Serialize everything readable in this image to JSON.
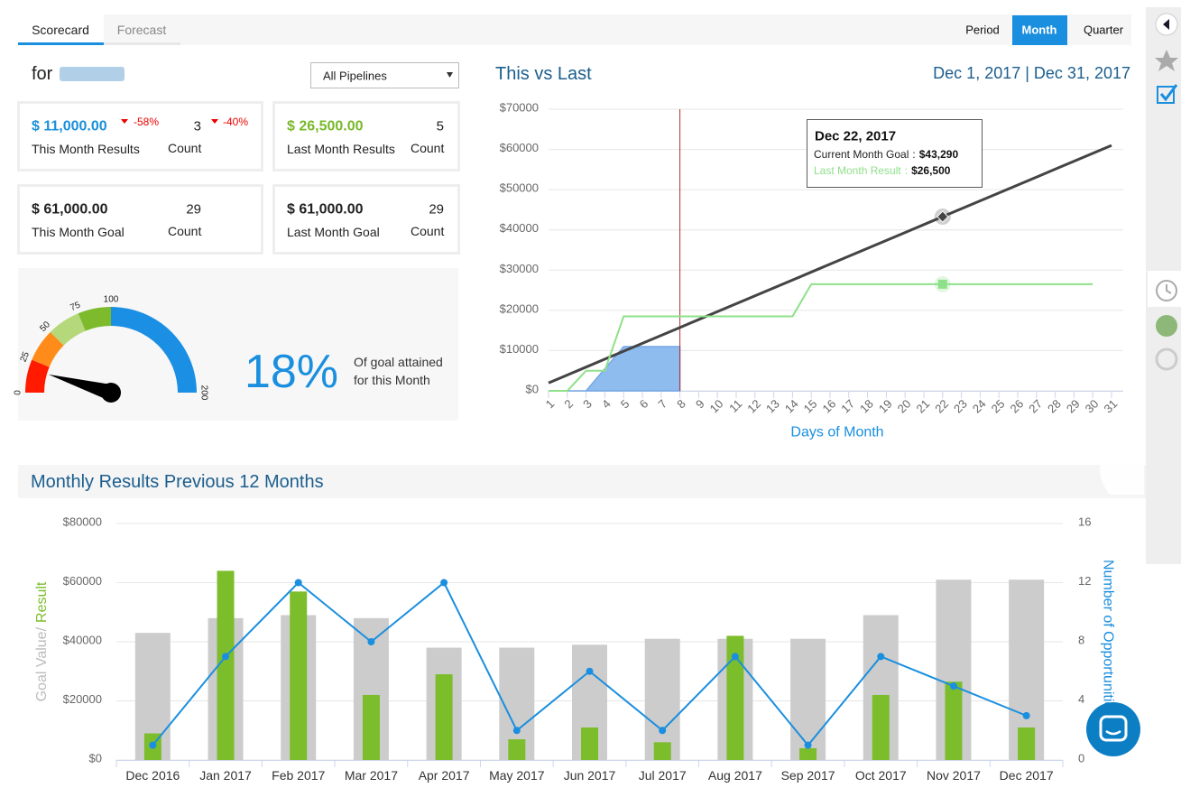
{
  "tabs": [
    "Scorecard",
    "Forecast"
  ],
  "period": {
    "label": "Period",
    "options": [
      "Month",
      "Quarter"
    ]
  },
  "owner_prefix": "for",
  "filter": "All Pipelines",
  "cards": [
    {
      "value": "$ 11,000.00",
      "color": "#1a90db",
      "change": "-58%",
      "count": "3",
      "count_change": "-40%",
      "label": "This Month Results",
      "count_label": "Count"
    },
    {
      "value": "$ 26,500.00",
      "color": "#78b82a",
      "count": "5",
      "label": "Last Month Results",
      "count_label": "Count"
    },
    {
      "value": "$ 61,000.00",
      "color": "#222222",
      "count": "29",
      "label": "This Month Goal",
      "count_label": "Count"
    },
    {
      "value": "$ 61,000.00",
      "color": "#222222",
      "count": "29",
      "label": "Last Month Goal",
      "count_label": "Count"
    }
  ],
  "gauge": {
    "ticks": [
      0,
      25,
      50,
      75,
      100,
      200
    ],
    "band_colors": [
      "#ff1a00",
      "#ff8c1a",
      "#b5d97a",
      "#7dbb2d",
      "#1a8fe3"
    ],
    "value": 18,
    "value_label": "18%",
    "caption": [
      "Of goal attained",
      "for this Month"
    ]
  },
  "chart_data": [
    {
      "type": "line",
      "title": "This vs Last",
      "date_range": "Dec 1, 2017 | Dec 31, 2017",
      "xlabel": "Days of Month",
      "x": [
        1,
        2,
        3,
        4,
        5,
        6,
        7,
        8,
        9,
        10,
        11,
        12,
        13,
        14,
        15,
        16,
        17,
        18,
        19,
        20,
        21,
        22,
        23,
        24,
        25,
        26,
        27,
        28,
        29,
        30,
        31
      ],
      "xlim": [
        1,
        31
      ],
      "xticks": [
        1,
        2,
        3,
        4,
        5,
        6,
        7,
        8,
        9,
        10,
        11,
        12,
        13,
        14,
        15,
        16,
        17,
        18,
        19,
        20,
        21,
        22,
        23,
        24,
        25,
        26,
        27,
        28,
        29,
        30,
        31
      ],
      "ylim": [
        0,
        70000
      ],
      "yticks": [
        {
          "value": 0,
          "label": "$0"
        },
        {
          "value": 10000,
          "label": "$10000"
        },
        {
          "value": 20000,
          "label": "$20000"
        },
        {
          "value": 30000,
          "label": "$30000"
        },
        {
          "value": 40000,
          "label": "$40000"
        },
        {
          "value": 50000,
          "label": "$50000"
        },
        {
          "value": 60000,
          "label": "$60000"
        },
        {
          "value": 70000,
          "label": "$70000"
        }
      ],
      "grid": true,
      "today": 8,
      "series": [
        {
          "name": "Current Month Goal",
          "color": "#444444",
          "style": "line",
          "values": [
            1968,
            3935,
            5903,
            7871,
            9839,
            11806,
            13774,
            15742,
            17710,
            19677,
            21645,
            23613,
            25581,
            27548,
            29516,
            31484,
            33452,
            35419,
            37387,
            39355,
            41323,
            43290,
            45258,
            47226,
            49194,
            51161,
            53129,
            55097,
            57065,
            59032,
            61000
          ]
        },
        {
          "name": "Last Month Result",
          "color": "#8fe08a",
          "style": "line",
          "values": [
            0,
            0,
            5000,
            5000,
            18500,
            18500,
            18500,
            18500,
            18500,
            18500,
            18500,
            18500,
            18500,
            18500,
            26500,
            26500,
            26500,
            26500,
            26500,
            26500,
            26500,
            26500,
            26500,
            26500,
            26500,
            26500,
            26500,
            26500,
            26500,
            26500,
            null
          ]
        },
        {
          "color": "#8ab9ef",
          "style": "area",
          "values": [
            0,
            0,
            0,
            5500,
            11000,
            11000,
            11000,
            11000,
            null,
            null,
            null,
            null,
            null,
            null,
            null,
            null,
            null,
            null,
            null,
            null,
            null,
            null,
            null,
            null,
            null,
            null,
            null,
            null,
            null,
            null,
            null
          ]
        }
      ],
      "tooltip": {
        "title": "Dec 22, 2017",
        "x": 22,
        "separator": ":",
        "labels": [
          "$43,290",
          "$26,500"
        ]
      }
    },
    {
      "type": "bar",
      "title": "Monthly Results Previous 12 Months",
      "ylabel": [
        "Goal Value/",
        "Result"
      ],
      "y2label": "Number of Opportunities",
      "categories": [
        "Dec 2016",
        "Jan 2017",
        "Feb 2017",
        "Mar 2017",
        "Apr 2017",
        "May 2017",
        "Jun 2017",
        "Jul 2017",
        "Aug 2017",
        "Sep 2017",
        "Oct 2017",
        "Nov 2017",
        "Dec 2017"
      ],
      "ylim": [
        0,
        80000
      ],
      "yticks": [
        {
          "value": 0,
          "label": "$0"
        },
        {
          "value": 20000,
          "label": "$20000"
        },
        {
          "value": 40000,
          "label": "$40000"
        },
        {
          "value": 60000,
          "label": "$60000"
        },
        {
          "value": 80000,
          "label": "$80000"
        }
      ],
      "y2lim": [
        0,
        16
      ],
      "y2ticks": [
        0,
        4,
        8,
        12,
        16
      ],
      "grid": true,
      "series": [
        {
          "color": "#cccccc",
          "style": "bar-wide",
          "values": [
            43000,
            48000,
            49000,
            48000,
            38000,
            38000,
            39000,
            41000,
            41000,
            41000,
            49000,
            61000,
            61000
          ]
        },
        {
          "color": "#7cbd2c",
          "style": "bar-narrow",
          "values": [
            9000,
            64000,
            57000,
            22000,
            29000,
            7000,
            11000,
            6000,
            42000,
            4000,
            22000,
            26500,
            11000
          ]
        },
        {
          "color": "#1a8fdf",
          "style": "line",
          "axis": "y2",
          "values": [
            1,
            7,
            12,
            8,
            12,
            2,
            6,
            2,
            7,
            1,
            7,
            5,
            3
          ]
        }
      ]
    }
  ]
}
